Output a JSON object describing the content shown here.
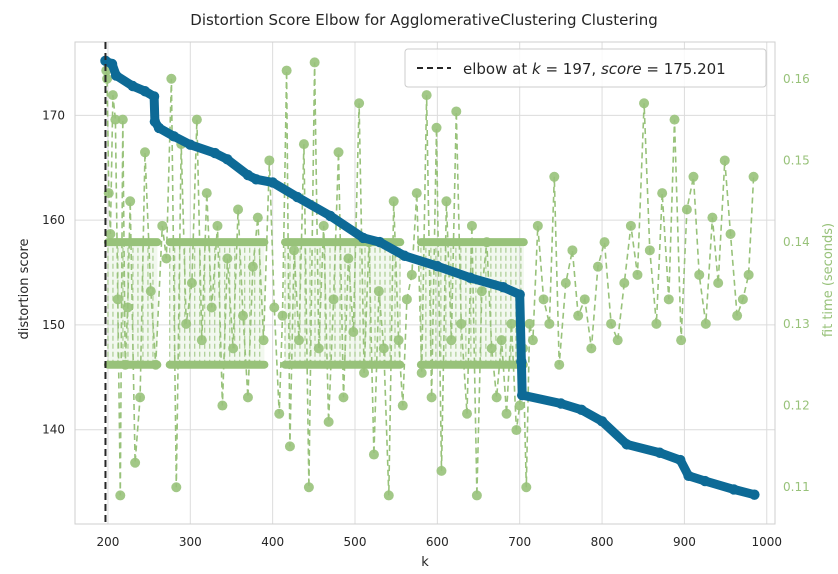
{
  "chart_data": {
    "type": "line",
    "title": "Distortion Score Elbow for AgglomerativeClustering Clustering",
    "xlabel": "k",
    "ylabel": "distortion score",
    "y2label": "fit time (seconds)",
    "xlim": [
      160,
      1010
    ],
    "ylim": [
      131,
      177
    ],
    "y2lim": [
      0.1055,
      0.1645
    ],
    "xticks": [
      200,
      300,
      400,
      500,
      600,
      700,
      800,
      900,
      1000
    ],
    "yticks": [
      140,
      150,
      160,
      170
    ],
    "y2ticks": [
      0.11,
      0.12,
      0.13,
      0.14,
      0.15,
      0.16
    ],
    "grid": true,
    "legend_position": "top-right",
    "elbow": {
      "k": 197,
      "score": 175.201
    },
    "legend": {
      "line1_prefix": "elbow at ",
      "k_symbol": "k",
      "k_part": " = 197, ",
      "score_symbol": "score",
      "score_part": " = 175.201"
    },
    "colors": {
      "distortion": "#0d6a96",
      "fit_time": "#98c27a",
      "elbow": "#262626",
      "grid": "#dcdcdc"
    },
    "series": [
      {
        "name": "distortion score",
        "axis": "left",
        "x": [
          197,
          205,
          210,
          230,
          245,
          256,
          257,
          262,
          280,
          300,
          330,
          345,
          370,
          380,
          400,
          430,
          470,
          510,
          530,
          560,
          600,
          640,
          680,
          700,
          702,
          703,
          750,
          775,
          800,
          830,
          870,
          895,
          905,
          925,
          960,
          985
        ],
        "values": [
          175.2,
          174.9,
          173.8,
          172.8,
          172.3,
          171.8,
          169.4,
          168.8,
          168.0,
          167.2,
          166.4,
          165.8,
          164.3,
          163.9,
          163.6,
          162.2,
          160.4,
          158.3,
          157.9,
          156.6,
          155.6,
          154.5,
          153.6,
          152.9,
          146.5,
          143.3,
          142.5,
          141.9,
          140.8,
          138.6,
          137.8,
          137.1,
          135.6,
          135.1,
          134.3,
          133.8
        ]
      },
      {
        "name": "fit time (seconds)",
        "axis": "right",
        "band_ranges": [
          [
            200,
            260
          ],
          [
            275,
            390
          ],
          [
            415,
            555
          ],
          [
            580,
            705
          ]
        ],
        "band_values": [
          0.125,
          0.14
        ],
        "x": [
          198,
          199,
          201,
          203,
          206,
          209,
          212,
          215,
          218,
          221,
          224,
          227,
          233,
          239,
          245,
          252,
          258,
          266,
          271,
          277,
          283,
          289,
          295,
          302,
          308,
          314,
          320,
          326,
          333,
          339,
          345,
          352,
          358,
          364,
          370,
          376,
          382,
          389,
          396,
          402,
          408,
          412,
          417,
          421,
          426,
          432,
          438,
          444,
          451,
          456,
          462,
          468,
          474,
          480,
          486,
          492,
          498,
          505,
          511,
          517,
          523,
          529,
          535,
          541,
          547,
          553,
          558,
          563,
          569,
          575,
          581,
          587,
          593,
          599,
          605,
          611,
          617,
          623,
          629,
          636,
          642,
          648,
          654,
          660,
          666,
          672,
          678,
          684,
          690,
          696,
          700,
          704,
          708,
          712,
          716,
          722,
          729,
          736,
          742,
          748,
          756,
          764,
          771,
          779,
          787,
          795,
          803,
          811,
          819,
          827,
          835,
          843,
          851,
          858,
          866,
          873,
          881,
          888,
          896,
          903,
          911,
          918,
          926,
          934,
          941,
          949,
          956,
          964,
          971,
          978,
          984
        ],
        "values": [
          0.161,
          0.16,
          0.146,
          0.141,
          0.158,
          0.155,
          0.133,
          0.109,
          0.155,
          0.125,
          0.132,
          0.145,
          0.113,
          0.121,
          0.151,
          0.134,
          0.125,
          0.142,
          0.138,
          0.16,
          0.11,
          0.152,
          0.13,
          0.135,
          0.155,
          0.128,
          0.146,
          0.132,
          0.142,
          0.12,
          0.138,
          0.127,
          0.144,
          0.131,
          0.121,
          0.137,
          0.143,
          0.128,
          0.15,
          0.132,
          0.119,
          0.131,
          0.161,
          0.115,
          0.139,
          0.128,
          0.152,
          0.11,
          0.162,
          0.127,
          0.142,
          0.118,
          0.133,
          0.151,
          0.121,
          0.138,
          0.129,
          0.157,
          0.124,
          0.14,
          0.114,
          0.134,
          0.127,
          0.109,
          0.145,
          0.128,
          0.12,
          0.133,
          0.136,
          0.146,
          0.124,
          0.158,
          0.121,
          0.154,
          0.112,
          0.145,
          0.128,
          0.156,
          0.13,
          0.119,
          0.142,
          0.109,
          0.134,
          0.14,
          0.127,
          0.121,
          0.128,
          0.119,
          0.13,
          0.117,
          0.12,
          0.127,
          0.11,
          0.13,
          0.128,
          0.142,
          0.133,
          0.13,
          0.148,
          0.125,
          0.135,
          0.139,
          0.131,
          0.133,
          0.127,
          0.137,
          0.14,
          0.13,
          0.128,
          0.135,
          0.142,
          0.136,
          0.157,
          0.139,
          0.13,
          0.146,
          0.133,
          0.155,
          0.128,
          0.144,
          0.148,
          0.136,
          0.13,
          0.143,
          0.135,
          0.15,
          0.141,
          0.131,
          0.133,
          0.136,
          0.148
        ]
      }
    ]
  }
}
